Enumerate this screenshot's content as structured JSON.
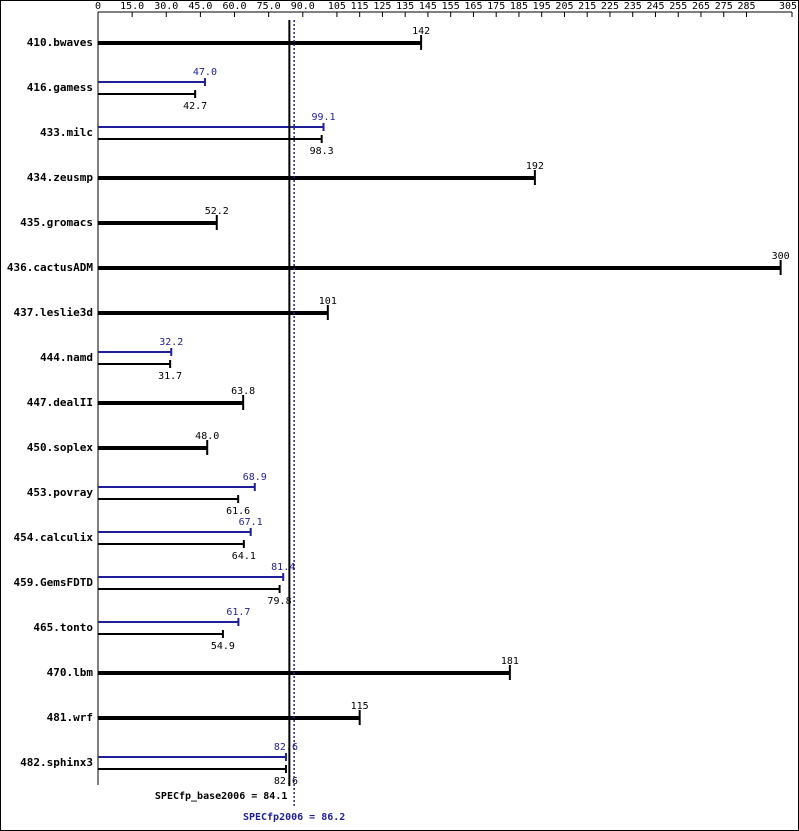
{
  "chart_data": {
    "type": "hbar",
    "categories": [
      "410.bwaves",
      "416.gamess",
      "433.milc",
      "434.zeusmp",
      "435.gromacs",
      "436.cactusADM",
      "437.leslie3d",
      "444.namd",
      "447.dealII",
      "450.soplex",
      "453.povray",
      "454.calculix",
      "459.GemsFDTD",
      "465.tonto",
      "470.lbm",
      "481.wrf",
      "482.sphinx3"
    ],
    "series": [
      {
        "color": "#1f1f99",
        "values": [
          null,
          47.0,
          99.1,
          null,
          null,
          null,
          null,
          32.2,
          null,
          null,
          68.9,
          67.1,
          81.4,
          61.7,
          null,
          null,
          82.6
        ],
        "value_labels": [
          null,
          "47.0",
          "99.1",
          null,
          null,
          null,
          null,
          "32.2",
          null,
          null,
          "68.9",
          "67.1",
          "81.4",
          "61.7",
          null,
          null,
          "82.6"
        ]
      },
      {
        "color": "#000000",
        "values": [
          142,
          42.7,
          98.3,
          192,
          52.2,
          300,
          101,
          31.7,
          63.8,
          48.0,
          61.6,
          64.1,
          79.8,
          54.9,
          181,
          115,
          82.6
        ],
        "value_labels": [
          "142",
          "42.7",
          "98.3",
          "192",
          "52.2",
          "300",
          "101",
          "31.7",
          "63.8",
          "48.0",
          "61.6",
          "64.1",
          "79.8",
          "54.9",
          "181",
          "115",
          "82.6"
        ]
      }
    ],
    "xlim": [
      0,
      305
    ],
    "xticks": [
      0,
      {
        "value": 15,
        "label": "15.0"
      },
      {
        "value": 30,
        "label": "30.0"
      },
      {
        "value": 45,
        "label": "45.0"
      },
      {
        "value": 60,
        "label": "60.0"
      },
      {
        "value": 75,
        "label": "75.0"
      },
      {
        "value": 90,
        "label": "90.0"
      },
      105,
      115,
      125,
      135,
      145,
      155,
      165,
      175,
      185,
      195,
      205,
      215,
      225,
      235,
      245,
      255,
      265,
      275,
      285,
      305
    ],
    "reference_lines": [
      {
        "label": "SPECfp_base2006 = 84.1",
        "value": 84.1,
        "color": "#000000",
        "style": "solid"
      },
      {
        "label": "SPECfp2006 = 86.2",
        "value": 86.2,
        "color": "#1f1f99",
        "style": "dotted"
      }
    ]
  }
}
